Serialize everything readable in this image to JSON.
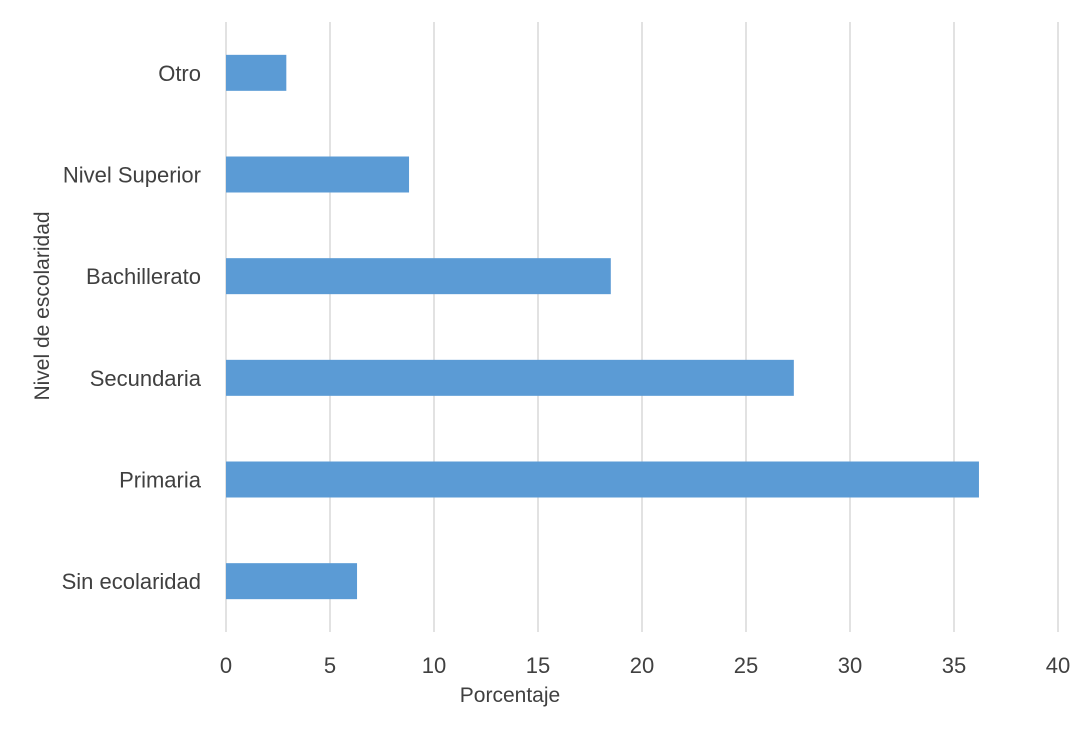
{
  "chart_data": {
    "type": "bar",
    "orientation": "horizontal",
    "categories": [
      "Otro",
      "Nivel Superior",
      "Bachillerato",
      "Secundaria",
      "Primaria",
      "Sin ecolaridad"
    ],
    "values": [
      2.9,
      8.8,
      18.5,
      27.3,
      36.2,
      6.3
    ],
    "xlabel": "Porcentaje",
    "ylabel": "Nivel de escolaridad",
    "xlim": [
      0,
      40
    ],
    "xticks": [
      "0",
      "5",
      "10",
      "15",
      "20",
      "25",
      "30",
      "35",
      "40"
    ],
    "grid": "vertical",
    "legend": "none",
    "bar_color": "#5b9bd5"
  }
}
